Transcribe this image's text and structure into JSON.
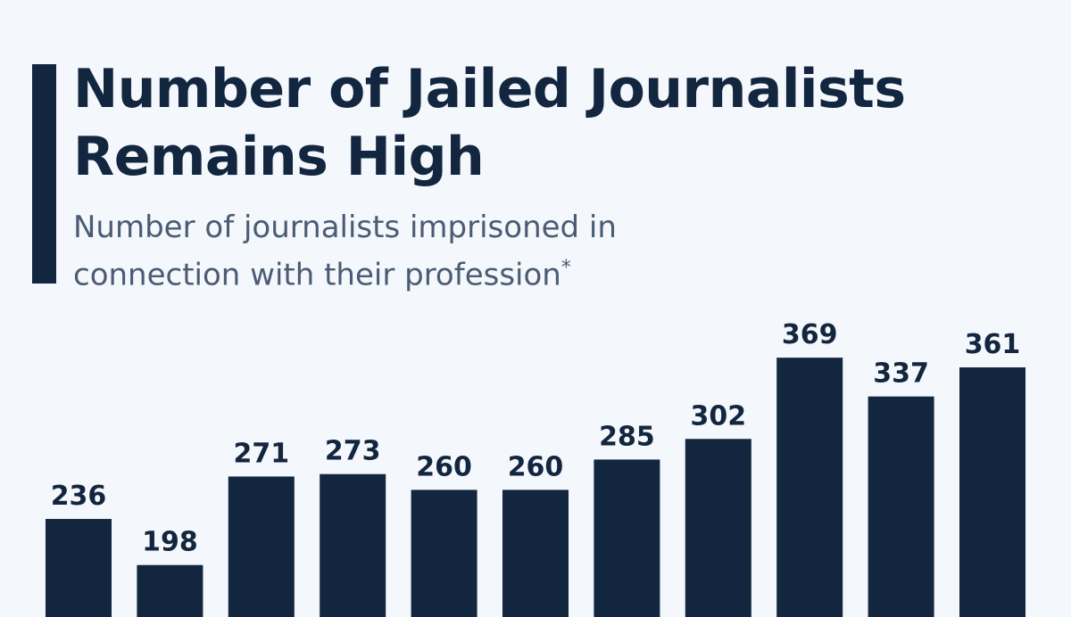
{
  "chart_data": {
    "type": "bar",
    "title": "Number of Jailed Journalists Remains High",
    "subtitle": "Number of journalists imprisoned in connection with their profession",
    "footnote_marker": "*",
    "categories": [
      null,
      null,
      null,
      null,
      null,
      null,
      null,
      null,
      null,
      null,
      null
    ],
    "values": [
      236,
      198,
      271,
      273,
      260,
      260,
      285,
      302,
      369,
      337,
      361
    ],
    "color": "#13263f"
  }
}
